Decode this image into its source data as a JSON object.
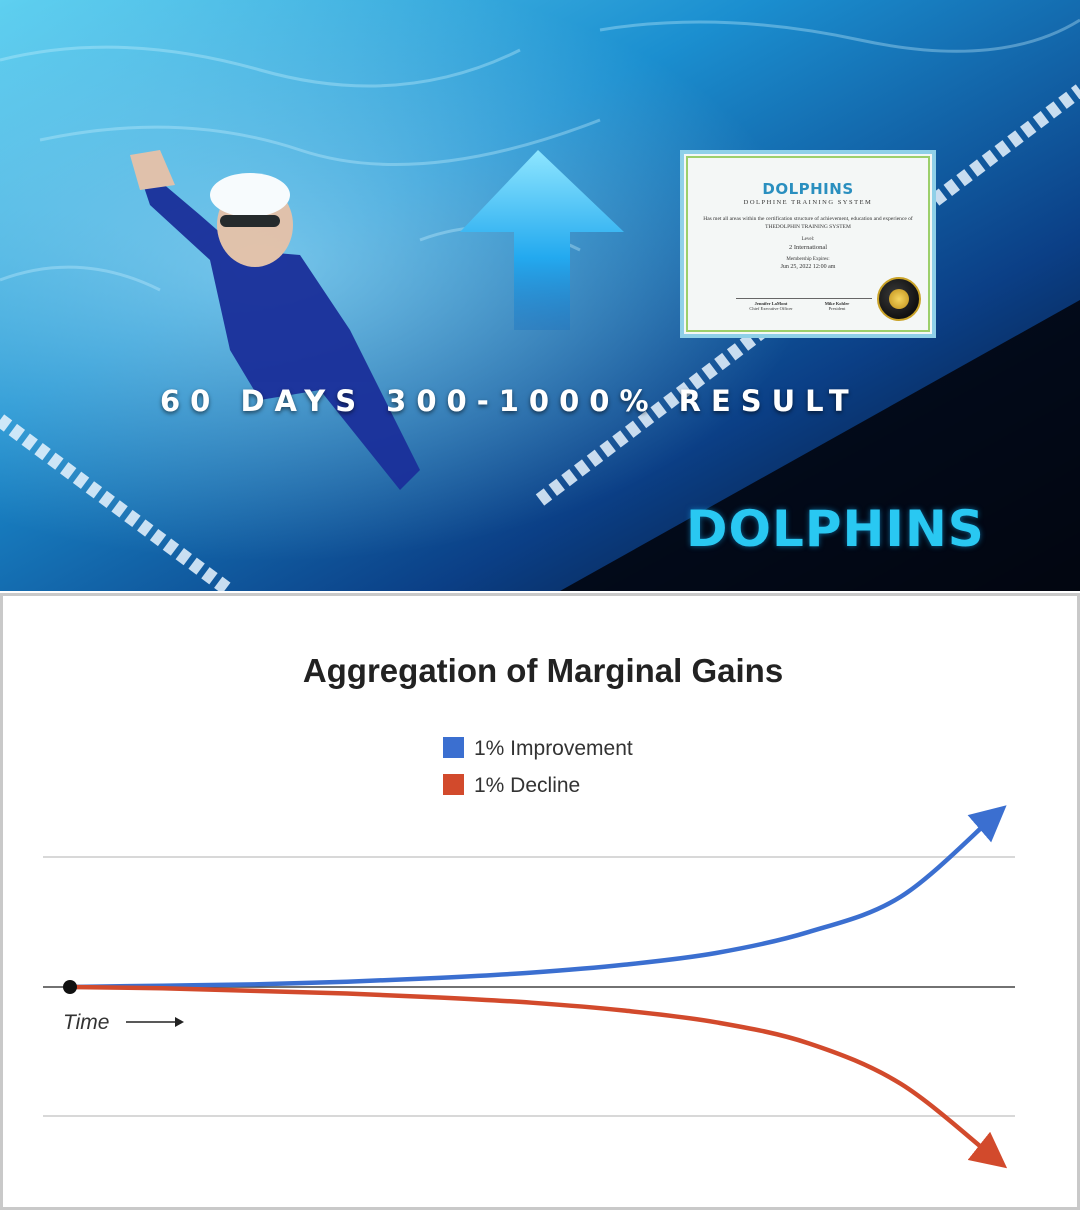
{
  "banner": {
    "headline": "60 DAYS 300-1000% RESULT",
    "brand_logo": "DOLPHINS",
    "colors": {
      "water": "#1b8fd0",
      "accent": "#29c8f2"
    },
    "certificate": {
      "brand": "DOLPHINS",
      "subtitle": "DOLPHINE TRAINING SYSTEM",
      "body": "Has met all areas within the certification structure of achievement, education and experience of THEDOLPHIN TRAINING SYSTEM",
      "level_label": "Level:",
      "level_value": "2 International",
      "expires_label": "Membership Expires:",
      "expires_value": "Jun 25, 2022 12:00 am",
      "signer1_name": "Jennifer LaMont",
      "signer1_title": "Chief Executive Officer",
      "signer2_name": "Mike Kohler",
      "signer2_title": "President"
    }
  },
  "chart_data": {
    "type": "line",
    "title": "Aggregation of Marginal Gains",
    "xlabel": "Time",
    "legend_placement": "top-center",
    "grid": true,
    "series": [
      {
        "name": "1% Improvement",
        "color": "#3b6fd0",
        "values": [
          0,
          0.01,
          0.02,
          0.04,
          0.07,
          0.11,
          0.17,
          0.26,
          0.42,
          0.69,
          1.3
        ]
      },
      {
        "name": "1% Decline",
        "color": "#d24a2c",
        "values": [
          0,
          -0.01,
          -0.03,
          -0.05,
          -0.08,
          -0.12,
          -0.18,
          -0.27,
          -0.43,
          -0.74,
          -1.3
        ]
      }
    ],
    "x": [
      0,
      1,
      2,
      3,
      4,
      5,
      6,
      7,
      8,
      9,
      10
    ],
    "ylim": [
      -1.3,
      1.3
    ]
  }
}
